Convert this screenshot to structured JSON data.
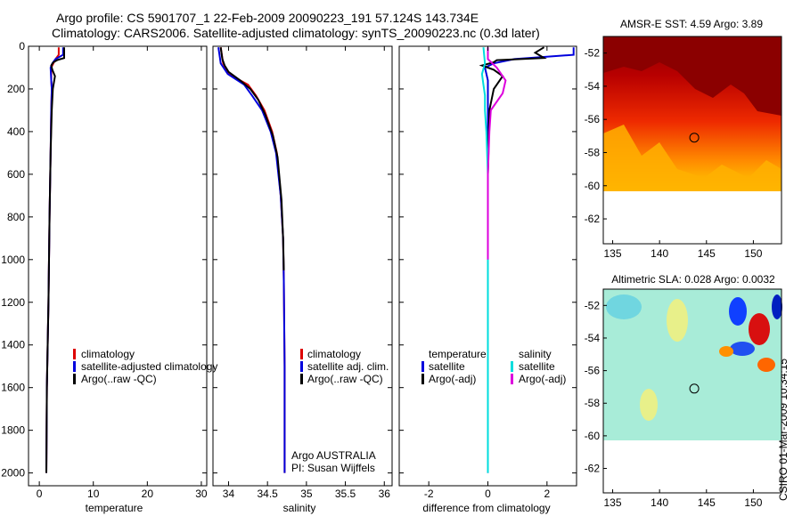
{
  "figure": {
    "title_line1": "Argo profile: CS 5901707_1 22-Feb-2009 20090223_191 57.124S 143.734E",
    "title_line2": "Climatology: CARS2006. Satellite-adjusted climatology: synTS_20090223.nc (0.3d later)",
    "side_stamp": "CSIRO 01-Mar-2009 10:34:15"
  },
  "chart_data": [
    {
      "type": "line",
      "id": "temperature",
      "xlabel": "temperature",
      "ylabel": "",
      "xlim": [
        -2,
        31
      ],
      "ylim": [
        2060,
        0
      ],
      "xticks": [
        0,
        10,
        20,
        30
      ],
      "yticks": [
        0,
        200,
        400,
        600,
        800,
        1000,
        1200,
        1400,
        1600,
        1800,
        2000
      ],
      "legend": [
        "climatology",
        "satellite-adjusted climatology",
        "Argo(..raw -QC)"
      ],
      "colors": {
        "climatology": "#dd0000",
        "satellite": "#0000dd",
        "argo": "#000000"
      },
      "series": [
        {
          "name": "climatology",
          "points": [
            [
              3.6,
              5
            ],
            [
              3.6,
              40
            ],
            [
              3.0,
              60
            ],
            [
              2.2,
              100
            ],
            [
              2.2,
              160
            ],
            [
              2.3,
              200
            ],
            [
              2.2,
              300
            ],
            [
              2.1,
              500
            ],
            [
              1.9,
              800
            ],
            [
              1.7,
              1200
            ],
            [
              1.4,
              1600
            ],
            [
              1.3,
              2000
            ]
          ]
        },
        {
          "name": "satellite-adjusted climatology",
          "points": [
            [
              4.4,
              5
            ],
            [
              4.4,
              40
            ],
            [
              3.0,
              60
            ],
            [
              2.4,
              80
            ],
            [
              2.1,
              100
            ],
            [
              2.2,
              160
            ],
            [
              2.3,
              200
            ],
            [
              2.2,
              300
            ],
            [
              2.1,
              500
            ],
            [
              1.9,
              800
            ],
            [
              1.7,
              1200
            ],
            [
              1.4,
              1600
            ],
            [
              1.3,
              2000
            ]
          ]
        },
        {
          "name": "Argo(..raw -QC)",
          "points": [
            [
              4.6,
              5
            ],
            [
              4.6,
              55
            ],
            [
              3.3,
              65
            ],
            [
              2.6,
              75
            ],
            [
              2.2,
              90
            ],
            [
              2.4,
              110
            ],
            [
              2.9,
              140
            ],
            [
              2.5,
              200
            ],
            [
              2.3,
              300
            ],
            [
              2.1,
              500
            ],
            [
              1.9,
              800
            ],
            [
              1.7,
              1200
            ],
            [
              1.4,
              1600
            ],
            [
              1.3,
              2000
            ]
          ]
        }
      ]
    },
    {
      "type": "line",
      "id": "salinity",
      "xlabel": "salinity",
      "ylabel": "",
      "xlim": [
        33.8,
        36.1
      ],
      "ylim": [
        2060,
        0
      ],
      "xticks": [
        34,
        34.5,
        35,
        35.5,
        36
      ],
      "yticks": [
        0,
        200,
        400,
        600,
        800,
        1000,
        1200,
        1400,
        1600,
        1800,
        2000
      ],
      "legend": [
        "climatology",
        "satellite adj. clim.",
        "Argo(..raw -QC)"
      ],
      "annotations": [
        "Argo AUSTRALIA",
        "PI: Susan Wijffels"
      ],
      "colors": {
        "climatology": "#dd0000",
        "satellite": "#0000dd",
        "argo": "#000000"
      },
      "series": [
        {
          "name": "climatology",
          "points": [
            [
              33.9,
              5
            ],
            [
              33.93,
              80
            ],
            [
              34.0,
              130
            ],
            [
              34.25,
              180
            ],
            [
              34.35,
              230
            ],
            [
              34.46,
              300
            ],
            [
              34.56,
              400
            ],
            [
              34.62,
              500
            ],
            [
              34.67,
              700
            ],
            [
              34.7,
              900
            ],
            [
              34.71,
              1100
            ],
            [
              34.72,
              1500
            ],
            [
              34.72,
              2000
            ]
          ]
        },
        {
          "name": "satellite adj. clim.",
          "points": [
            [
              33.87,
              5
            ],
            [
              33.9,
              80
            ],
            [
              33.99,
              130
            ],
            [
              34.2,
              180
            ],
            [
              34.3,
              230
            ],
            [
              34.43,
              300
            ],
            [
              34.54,
              400
            ],
            [
              34.61,
              500
            ],
            [
              34.67,
              700
            ],
            [
              34.7,
              900
            ],
            [
              34.71,
              1100
            ],
            [
              34.72,
              1500
            ],
            [
              34.72,
              2000
            ]
          ]
        },
        {
          "name": "Argo(..raw -QC)",
          "points": [
            [
              33.9,
              5
            ],
            [
              33.92,
              60
            ],
            [
              33.95,
              90
            ],
            [
              34.0,
              120
            ],
            [
              34.15,
              160
            ],
            [
              34.28,
              200
            ],
            [
              34.38,
              250
            ],
            [
              34.47,
              320
            ],
            [
              34.57,
              420
            ],
            [
              34.63,
              520
            ],
            [
              34.68,
              720
            ],
            [
              34.7,
              900
            ],
            [
              34.71,
              1050
            ]
          ]
        }
      ]
    },
    {
      "type": "line",
      "id": "difference",
      "xlabel": "difference from climatology",
      "ylabel": "",
      "xlim": [
        -3,
        3
      ],
      "ylim": [
        2060,
        0
      ],
      "xticks": [
        -2,
        0,
        2
      ],
      "yticks": [
        0,
        200,
        400,
        600,
        800,
        1000,
        1200,
        1400,
        1600,
        1800,
        2000
      ],
      "legend_temperature_header": "temperature",
      "legend_salinity_header": "salinity",
      "legend": [
        "satellite",
        "Argo(-adj)",
        "satellite",
        "Argo(-adj)"
      ],
      "colors": {
        "t_sat": "#0000dd",
        "t_argo": "#000000",
        "s_sat": "#00dddd",
        "s_argo": "#dd00dd"
      },
      "series": [
        {
          "name": "temperature satellite",
          "points": [
            [
              2.9,
              5
            ],
            [
              2.9,
              40
            ],
            [
              0.9,
              60
            ],
            [
              0.2,
              80
            ],
            [
              -0.1,
              100
            ],
            [
              0.0,
              160
            ],
            [
              0.0,
              300
            ],
            [
              0.0,
              600
            ],
            [
              0.0,
              2000
            ]
          ]
        },
        {
          "name": "temperature Argo(-adj)",
          "points": [
            [
              1.9,
              5
            ],
            [
              1.6,
              30
            ],
            [
              1.9,
              55
            ],
            [
              0.3,
              65
            ],
            [
              0.2,
              75
            ],
            [
              -0.2,
              90
            ],
            [
              0.2,
              110
            ],
            [
              0.5,
              140
            ],
            [
              0.2,
              200
            ],
            [
              0.05,
              300
            ],
            [
              0.0,
              600
            ],
            [
              0.0,
              1000
            ]
          ]
        },
        {
          "name": "salinity satellite",
          "points": [
            [
              -0.15,
              5
            ],
            [
              -0.1,
              80
            ],
            [
              -0.2,
              130
            ],
            [
              -0.15,
              180
            ],
            [
              -0.1,
              230
            ],
            [
              -0.1,
              300
            ],
            [
              -0.05,
              400
            ],
            [
              0.0,
              600
            ],
            [
              0.0,
              2000
            ]
          ]
        },
        {
          "name": "salinity Argo(-adj)",
          "points": [
            [
              0.0,
              5
            ],
            [
              0.0,
              60
            ],
            [
              0.3,
              100
            ],
            [
              0.6,
              160
            ],
            [
              0.5,
              220
            ],
            [
              0.1,
              300
            ],
            [
              0.05,
              400
            ],
            [
              0.0,
              600
            ],
            [
              0.0,
              1000
            ]
          ]
        }
      ]
    },
    {
      "type": "heatmap",
      "id": "sst",
      "title": "AMSR-E SST: 4.59 Argo: 3.89",
      "xlim": [
        134,
        153
      ],
      "ylim": [
        -63.5,
        -51
      ],
      "xticks": [
        135,
        140,
        145,
        150
      ],
      "yticks": [
        -52,
        -54,
        -56,
        -58,
        -60,
        -62
      ],
      "data_extent_lat": [
        -60.1,
        -51
      ],
      "marker": {
        "lon": 143.7,
        "lat": -57.1
      }
    },
    {
      "type": "heatmap",
      "id": "sla",
      "title": "Altimetric SLA: 0.028 Argo: 0.0032",
      "xlim": [
        134,
        153
      ],
      "ylim": [
        -63.5,
        -51
      ],
      "xticks": [
        135,
        140,
        145,
        150
      ],
      "yticks": [
        -52,
        -54,
        -56,
        -58,
        -60,
        -62
      ],
      "data_extent_lat": [
        -60.1,
        -51
      ],
      "marker": {
        "lon": 143.7,
        "lat": -57.1
      }
    }
  ]
}
